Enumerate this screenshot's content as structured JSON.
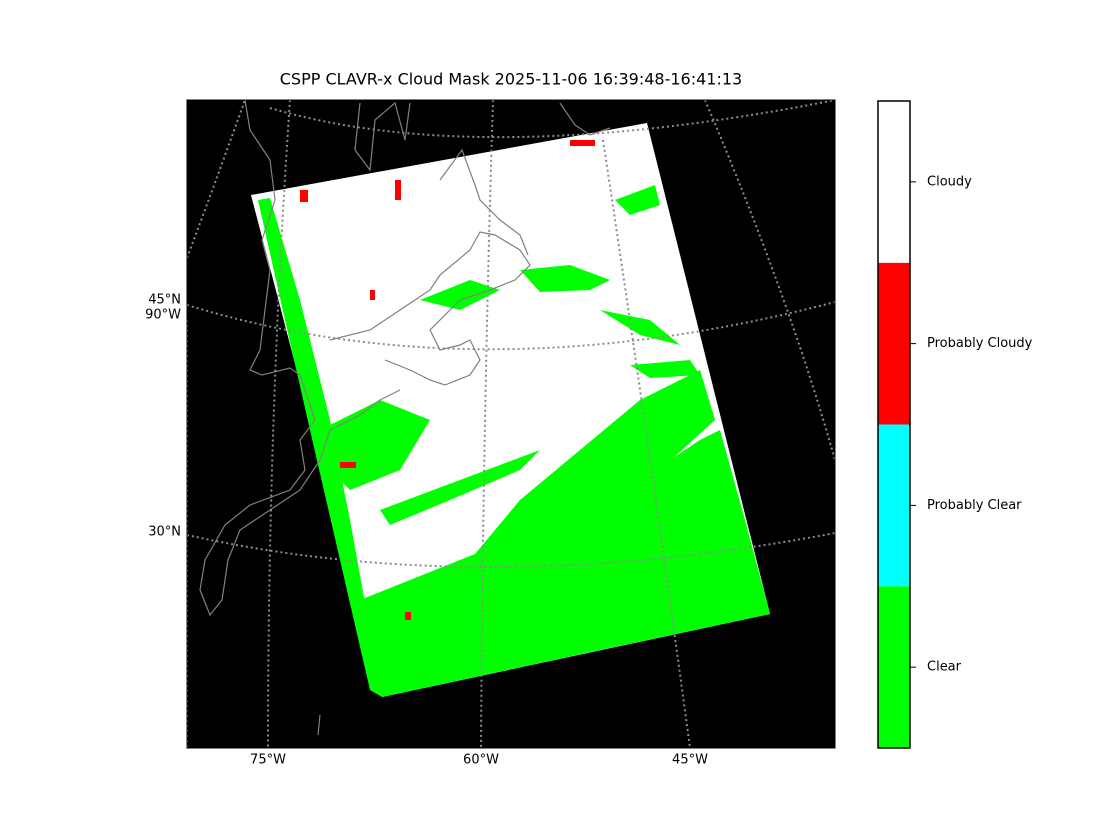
{
  "title": "CSPP CLAVR-x Cloud Mask 2025-11-06 16:39:48-16:41:13",
  "map": {
    "left_labels": [
      "45°N",
      "90°W",
      "30°N"
    ],
    "bottom_labels": [
      "75°W",
      "60°W",
      "45°W"
    ]
  },
  "colorbar": {
    "classes": [
      {
        "label": "Clear",
        "color": "#00ff00"
      },
      {
        "label": "Probably Clear",
        "color": "#00ffff"
      },
      {
        "label": "Probably Cloudy",
        "color": "#ff0000"
      },
      {
        "label": "Cloudy",
        "color": "#ffffff"
      }
    ]
  }
}
